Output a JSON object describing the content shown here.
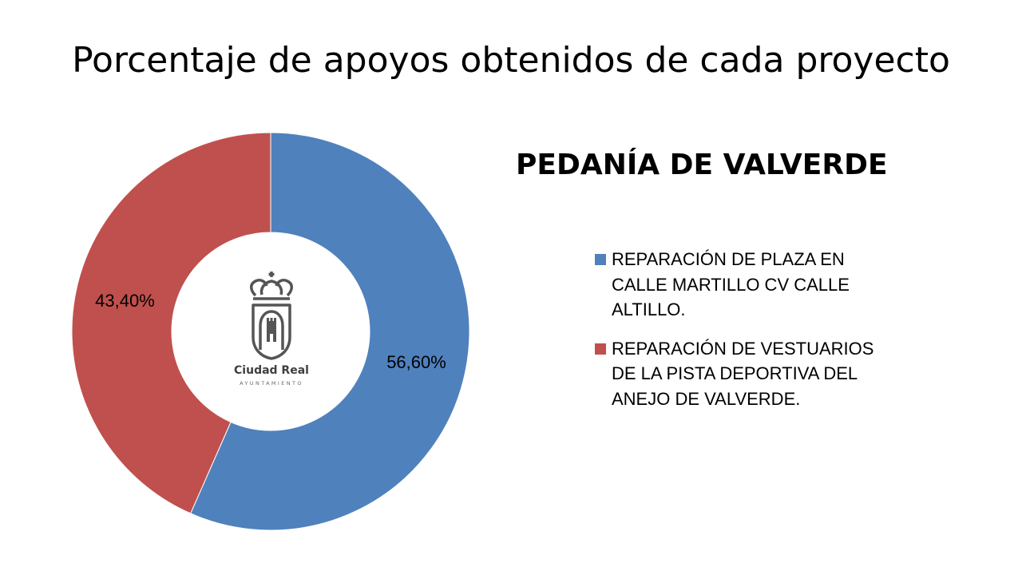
{
  "chart_data": {
    "type": "pie",
    "title": "Porcentaje de apoyos obtenidos de cada proyecto",
    "subtitle": "PEDANÍA DE VALVERDE",
    "legend_position": "right",
    "slices": [
      {
        "name": "REPARACIÓN DE PLAZA EN CALLE MARTILLO CV CALLE ALTILLO.",
        "value": 56.6,
        "label": "56,60%",
        "color": "#4f81bd"
      },
      {
        "name": "REPARACIÓN DE VESTUARIOS DE LA PISTA DEPORTIVA DEL ANEJO DE VALVERDE.",
        "value": 43.4,
        "label": "43,40%",
        "color": "#c0504d"
      }
    ]
  },
  "logo": {
    "name": "Ciudad Real",
    "sub": "AYUNTAMIENTO",
    "color": "#555555"
  }
}
